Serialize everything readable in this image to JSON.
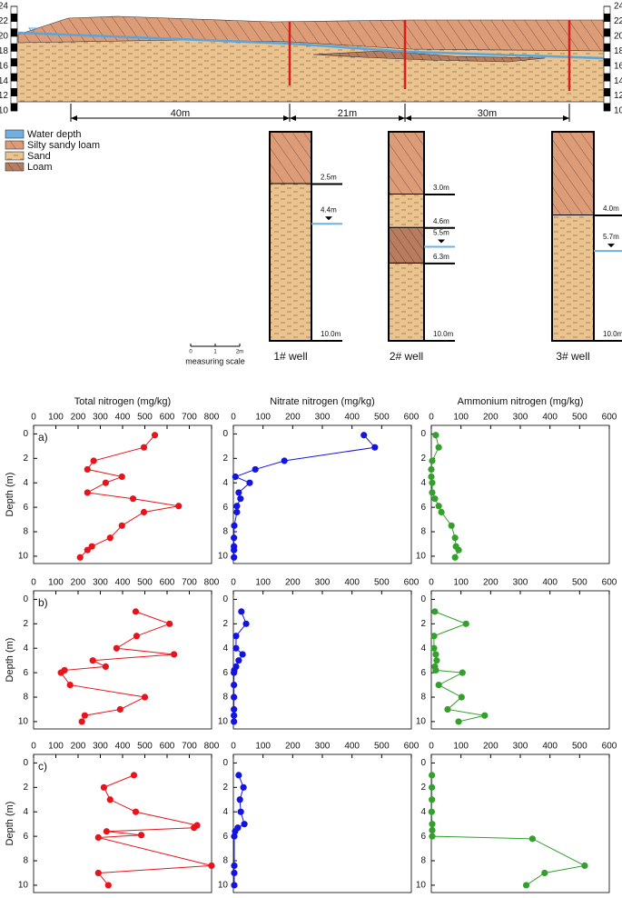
{
  "diagram": {
    "elevation_ticks": [
      10,
      12,
      14,
      16,
      18,
      20,
      22,
      24
    ],
    "distances": [
      "40m",
      "21m",
      "30m"
    ],
    "legend": [
      "Water depth",
      "Silty sandy loam",
      "Sand",
      "Loam"
    ],
    "wells": [
      {
        "name": "1# well",
        "boundaries": [
          {
            "value": 2.5,
            "label": "2.5m"
          },
          {
            "value": 10,
            "label": "10.0m"
          }
        ],
        "water": {
          "value": 4.4,
          "label": "4.4m"
        }
      },
      {
        "name": "2# well",
        "boundaries": [
          {
            "value": 3,
            "label": "3.0m"
          },
          {
            "value": 4.6,
            "label": "4.6m"
          },
          {
            "value": 6.3,
            "label": "6.3m"
          },
          {
            "value": 10,
            "label": "10.0m"
          }
        ],
        "water": {
          "value": 5.5,
          "label": "5.5m"
        }
      },
      {
        "name": "3# well",
        "boundaries": [
          {
            "value": 4,
            "label": "4.0m"
          },
          {
            "value": 10,
            "label": "10.0m"
          }
        ],
        "water": {
          "value": 5.7,
          "label": "5.7m"
        }
      }
    ],
    "scale": {
      "ticks": [
        "0",
        "1",
        "2m"
      ],
      "label": "measuring scale"
    }
  },
  "chart_data": [
    {
      "type": "line",
      "panel": "a)",
      "xlabel": "Total nitrogen (mg/kg)",
      "ylabel": "Depth (m)",
      "xlim": [
        0,
        800
      ],
      "xticks": [
        0,
        100,
        200,
        300,
        400,
        500,
        600,
        700,
        800
      ],
      "ylim": [
        -0.7,
        10.6
      ],
      "yticks": [
        0,
        2,
        4,
        6,
        8,
        10
      ],
      "y_inverted": true,
      "series": [
        {
          "color": "#e8141b",
          "x": [
            545,
            496,
            270,
            242,
            397,
            324,
            242,
            447,
            652,
            496,
            397,
            344,
            262,
            242,
            209
          ],
          "y": [
            0.1,
            1.1,
            2.2,
            2.9,
            3.5,
            4,
            4.8,
            5.3,
            5.9,
            6.4,
            7.5,
            8.5,
            9.2,
            9.5,
            10.1
          ]
        }
      ]
    },
    {
      "type": "line",
      "xlabel": "Nitrate nitrogen (mg/kg)",
      "xlim": [
        0,
        600
      ],
      "xticks": [
        0,
        100,
        200,
        300,
        400,
        500,
        600
      ],
      "ylim": [
        -0.7,
        10.6
      ],
      "yticks": [
        0,
        2,
        4,
        6,
        8,
        10
      ],
      "y_inverted": true,
      "series": [
        {
          "color": "#1414e0",
          "x": [
            440,
            477,
            172,
            74,
            7,
            55,
            18,
            24,
            12,
            12,
            3,
            2,
            2,
            2,
            2
          ],
          "y": [
            0.1,
            1.1,
            2.2,
            2.9,
            3.5,
            4,
            4.8,
            5.3,
            5.9,
            6.4,
            7.5,
            8.5,
            9.2,
            9.5,
            10.1
          ]
        }
      ]
    },
    {
      "type": "line",
      "xlabel": "Ammonium nitrogen (mg/kg)",
      "xlim": [
        0,
        600
      ],
      "xticks": [
        0,
        100,
        200,
        300,
        400,
        500,
        600
      ],
      "ylim": [
        -0.7,
        10.6
      ],
      "yticks": [
        0,
        2,
        4,
        6,
        8,
        10
      ],
      "y_inverted": true,
      "series": [
        {
          "color": "#33a02c",
          "x": [
            15,
            25,
            3,
            0,
            0,
            3,
            3,
            12,
            25,
            34,
            68,
            80,
            83,
            92,
            80
          ],
          "y": [
            0.1,
            1.1,
            2.2,
            2.9,
            3.5,
            4,
            4.8,
            5.3,
            5.9,
            6.4,
            7.5,
            8.5,
            9.2,
            9.5,
            10.1
          ]
        }
      ]
    },
    {
      "type": "line",
      "panel": "b)",
      "ylabel": "Depth (m)",
      "xlim": [
        0,
        800
      ],
      "xticks": [
        0,
        100,
        200,
        300,
        400,
        500,
        600,
        700,
        800
      ],
      "ylim": [
        -0.7,
        10.6
      ],
      "yticks": [
        0,
        2,
        4,
        6,
        8,
        10
      ],
      "y_inverted": true,
      "series": [
        {
          "color": "#e8141b",
          "x": [
            459,
            611,
            463,
            373,
            631,
            266,
            324,
            139,
            123,
            164,
            500,
            389,
            230,
            217
          ],
          "y": [
            1,
            2,
            3,
            4,
            4.5,
            5,
            5.5,
            5.8,
            6,
            7,
            8,
            9,
            9.5,
            10
          ]
        }
      ]
    },
    {
      "type": "line",
      "xlim": [
        0,
        600
      ],
      "xticks": [
        0,
        100,
        200,
        300,
        400,
        500,
        600
      ],
      "ylim": [
        -0.7,
        10.6
      ],
      "yticks": [
        0,
        2,
        4,
        6,
        8,
        10
      ],
      "y_inverted": true,
      "series": [
        {
          "color": "#1414e0",
          "x": [
            27,
            43,
            9,
            9,
            31,
            18,
            9,
            3,
            2,
            2,
            2,
            2,
            2,
            2
          ],
          "y": [
            1,
            2,
            3,
            4,
            4.5,
            5,
            5.5,
            5.8,
            6,
            7,
            8,
            9,
            9.5,
            10
          ]
        }
      ]
    },
    {
      "type": "line",
      "xlim": [
        0,
        600
      ],
      "xticks": [
        0,
        100,
        200,
        300,
        400,
        500,
        600
      ],
      "ylim": [
        -0.7,
        10.6
      ],
      "yticks": [
        0,
        2,
        4,
        6,
        8,
        10
      ],
      "y_inverted": true,
      "series": [
        {
          "color": "#33a02c",
          "x": [
            12,
            117,
            9,
            9,
            15,
            18,
            12,
            15,
            105,
            25,
            102,
            55,
            180,
            92
          ],
          "y": [
            1,
            2,
            3,
            4,
            4.5,
            5,
            5.5,
            5.8,
            6,
            7,
            8,
            9,
            9.5,
            10
          ]
        }
      ]
    },
    {
      "type": "line",
      "panel": "c)",
      "ylabel": "Depth (m)",
      "xlim": [
        0,
        800
      ],
      "xticks": [
        0,
        100,
        200,
        300,
        400,
        500,
        600,
        700,
        800
      ],
      "ylim": [
        -0.7,
        10.6
      ],
      "yticks": [
        0,
        2,
        4,
        6,
        8,
        10
      ],
      "y_inverted": true,
      "series": [
        {
          "color": "#e8141b",
          "x": [
            451,
            316,
            344,
            459,
            735,
            721,
            328,
            484,
            291,
            800,
            291,
            336
          ],
          "y": [
            1,
            2,
            3,
            4,
            5.1,
            5.3,
            5.6,
            5.9,
            6.1,
            8.4,
            9,
            10
          ]
        }
      ]
    },
    {
      "type": "line",
      "xlim": [
        0,
        600
      ],
      "xticks": [
        0,
        100,
        200,
        300,
        400,
        500,
        600
      ],
      "ylim": [
        -0.7,
        10.6
      ],
      "yticks": [
        0,
        2,
        4,
        6,
        8,
        10
      ],
      "y_inverted": true,
      "series": [
        {
          "color": "#1414e0",
          "x": [
            18,
            34,
            22,
            25,
            37,
            15,
            6,
            3,
            3,
            3,
            3
          ],
          "y": [
            1,
            2,
            3,
            4,
            5,
            5.3,
            5.6,
            6,
            8.4,
            9,
            10
          ]
        }
      ]
    },
    {
      "type": "line",
      "xlim": [
        0,
        600
      ],
      "xticks": [
        0,
        100,
        200,
        300,
        400,
        500,
        600
      ],
      "ylim": [
        -0.7,
        10.6
      ],
      "yticks": [
        0,
        2,
        4,
        6,
        8,
        10
      ],
      "y_inverted": true,
      "series": [
        {
          "color": "#33a02c",
          "x": [
            2,
            2,
            2,
            1,
            3,
            3,
            3,
            341,
            517,
            382,
            320
          ],
          "y": [
            1,
            2,
            3,
            4,
            5,
            5.5,
            6,
            6.2,
            8.4,
            9,
            10
          ]
        }
      ]
    }
  ]
}
